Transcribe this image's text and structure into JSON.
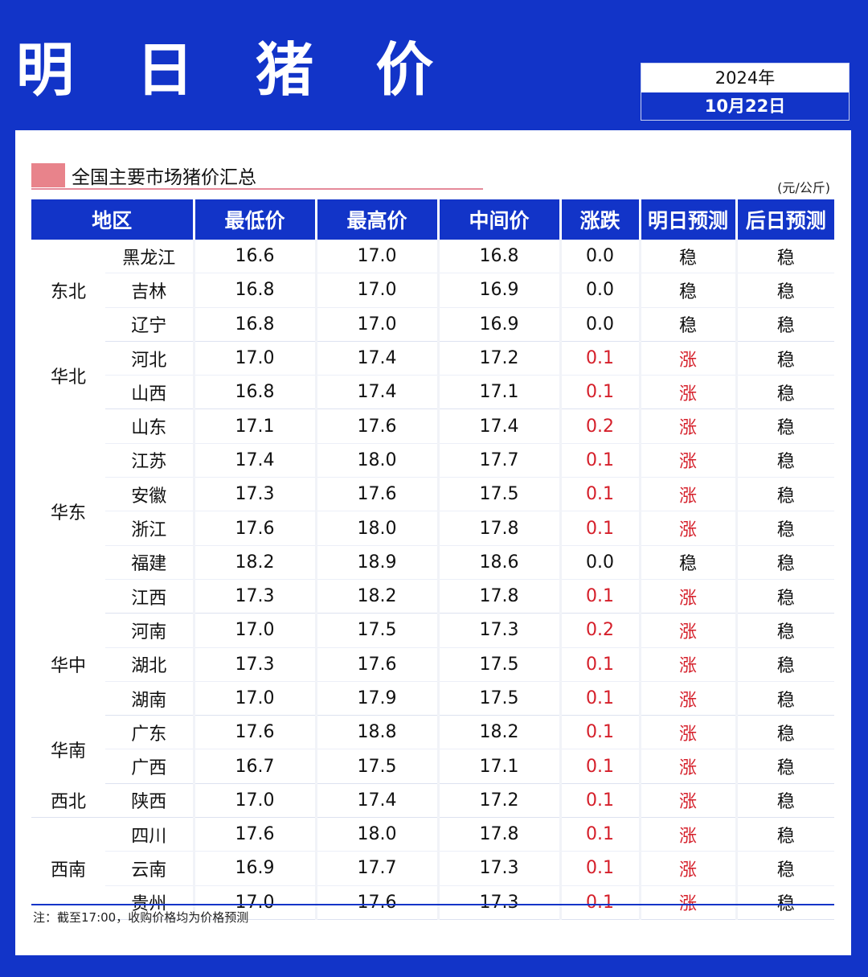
{
  "header": {
    "title": "明 日 猪 价",
    "year": "2024年",
    "date": "10月22日"
  },
  "section": {
    "title": "全国主要市场猪价汇总",
    "unit": "(元/公斤)"
  },
  "table": {
    "columns": [
      "地区",
      "最低价",
      "最高价",
      "中间价",
      "涨跌",
      "明日预测",
      "后日预测"
    ],
    "groups": [
      {
        "region": "东北",
        "rows": [
          {
            "province": "黑龙江",
            "low": "16.6",
            "high": "17.0",
            "mid": "16.8",
            "change": "0.0",
            "tomorrow": "稳",
            "after": "稳"
          },
          {
            "province": "吉林",
            "low": "16.8",
            "high": "17.0",
            "mid": "16.9",
            "change": "0.0",
            "tomorrow": "稳",
            "after": "稳"
          },
          {
            "province": "辽宁",
            "low": "16.8",
            "high": "17.0",
            "mid": "16.9",
            "change": "0.0",
            "tomorrow": "稳",
            "after": "稳"
          }
        ]
      },
      {
        "region": "华北",
        "rows": [
          {
            "province": "河北",
            "low": "17.0",
            "high": "17.4",
            "mid": "17.2",
            "change": "0.1",
            "tomorrow": "涨",
            "after": "稳"
          },
          {
            "province": "山西",
            "low": "16.8",
            "high": "17.4",
            "mid": "17.1",
            "change": "0.1",
            "tomorrow": "涨",
            "after": "稳"
          }
        ]
      },
      {
        "region": "华东",
        "rows": [
          {
            "province": "山东",
            "low": "17.1",
            "high": "17.6",
            "mid": "17.4",
            "change": "0.2",
            "tomorrow": "涨",
            "after": "稳"
          },
          {
            "province": "江苏",
            "low": "17.4",
            "high": "18.0",
            "mid": "17.7",
            "change": "0.1",
            "tomorrow": "涨",
            "after": "稳"
          },
          {
            "province": "安徽",
            "low": "17.3",
            "high": "17.6",
            "mid": "17.5",
            "change": "0.1",
            "tomorrow": "涨",
            "after": "稳"
          },
          {
            "province": "浙江",
            "low": "17.6",
            "high": "18.0",
            "mid": "17.8",
            "change": "0.1",
            "tomorrow": "涨",
            "after": "稳"
          },
          {
            "province": "福建",
            "low": "18.2",
            "high": "18.9",
            "mid": "18.6",
            "change": "0.0",
            "tomorrow": "稳",
            "after": "稳"
          },
          {
            "province": "江西",
            "low": "17.3",
            "high": "18.2",
            "mid": "17.8",
            "change": "0.1",
            "tomorrow": "涨",
            "after": "稳"
          }
        ]
      },
      {
        "region": "华中",
        "rows": [
          {
            "province": "河南",
            "low": "17.0",
            "high": "17.5",
            "mid": "17.3",
            "change": "0.2",
            "tomorrow": "涨",
            "after": "稳"
          },
          {
            "province": "湖北",
            "low": "17.3",
            "high": "17.6",
            "mid": "17.5",
            "change": "0.1",
            "tomorrow": "涨",
            "after": "稳"
          },
          {
            "province": "湖南",
            "low": "17.0",
            "high": "17.9",
            "mid": "17.5",
            "change": "0.1",
            "tomorrow": "涨",
            "after": "稳"
          }
        ]
      },
      {
        "region": "华南",
        "rows": [
          {
            "province": "广东",
            "low": "17.6",
            "high": "18.8",
            "mid": "18.2",
            "change": "0.1",
            "tomorrow": "涨",
            "after": "稳"
          },
          {
            "province": "广西",
            "low": "16.7",
            "high": "17.5",
            "mid": "17.1",
            "change": "0.1",
            "tomorrow": "涨",
            "after": "稳"
          }
        ]
      },
      {
        "region": "西北",
        "rows": [
          {
            "province": "陕西",
            "low": "17.0",
            "high": "17.4",
            "mid": "17.2",
            "change": "0.1",
            "tomorrow": "涨",
            "after": "稳"
          }
        ]
      },
      {
        "region": "西南",
        "rows": [
          {
            "province": "四川",
            "low": "17.6",
            "high": "18.0",
            "mid": "17.8",
            "change": "0.1",
            "tomorrow": "涨",
            "after": "稳"
          },
          {
            "province": "云南",
            "low": "16.9",
            "high": "17.7",
            "mid": "17.3",
            "change": "0.1",
            "tomorrow": "涨",
            "after": "稳"
          },
          {
            "province": "贵州",
            "low": "17.0",
            "high": "17.6",
            "mid": "17.3",
            "change": "0.1",
            "tomorrow": "涨",
            "after": "稳"
          }
        ]
      }
    ]
  },
  "note": "注：截至17:00，收购价格均为价格预测",
  "colors": {
    "brand_blue": "#1234c8",
    "up_red": "#d51f2a",
    "marker_pink": "#e8838b"
  }
}
